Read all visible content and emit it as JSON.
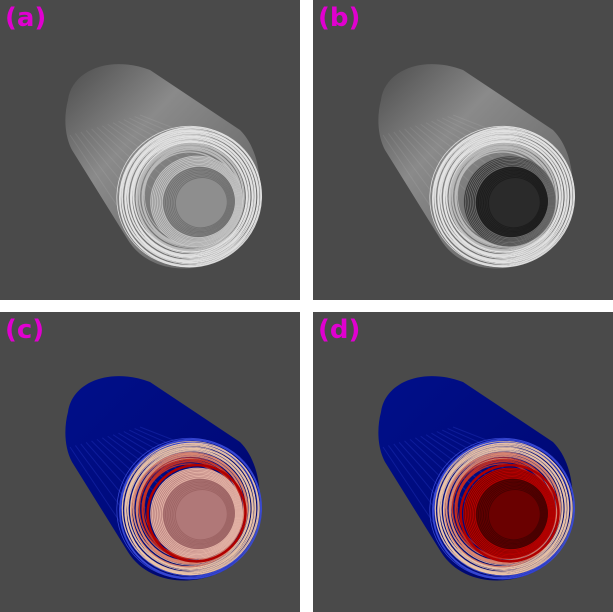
{
  "panels": [
    {
      "id": "a",
      "label": "(a)",
      "style": "gray-all-streamlines"
    },
    {
      "id": "b",
      "label": "(b)",
      "style": "gray-cut-streamlines"
    },
    {
      "id": "c",
      "label": "(c)",
      "style": "colored-all-streamlines"
    },
    {
      "id": "d",
      "label": "(d)",
      "style": "colored-cut-streamlines"
    }
  ],
  "colors": {
    "panel_background": "#4a4a4a",
    "label_color": "#e000d0",
    "gray_body_light": "#8a8a8a",
    "gray_body_dark": "#3a3a3a",
    "blue_body": "#000a7a",
    "red_inner": "#b00000",
    "peach_ring": "#f0c8a8"
  }
}
